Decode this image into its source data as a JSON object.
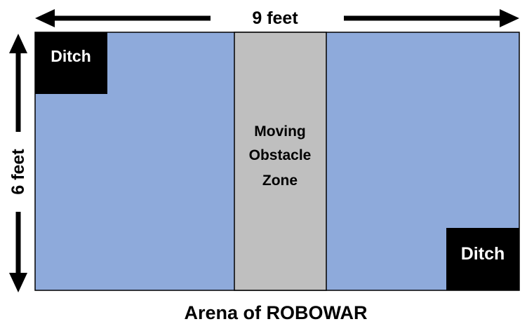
{
  "width_label": "9 feet",
  "height_label": "6 feet",
  "ditch_top_left": "Ditch",
  "ditch_bottom_right": "Ditch",
  "obstacle_zone": [
    "Moving",
    "Obstacle",
    "Zone"
  ],
  "caption": "Arena of ROBOWAR",
  "colors": {
    "arena": "#8eaadb",
    "obstacle_zone": "#bfbfbf",
    "ditch": "#000000"
  }
}
